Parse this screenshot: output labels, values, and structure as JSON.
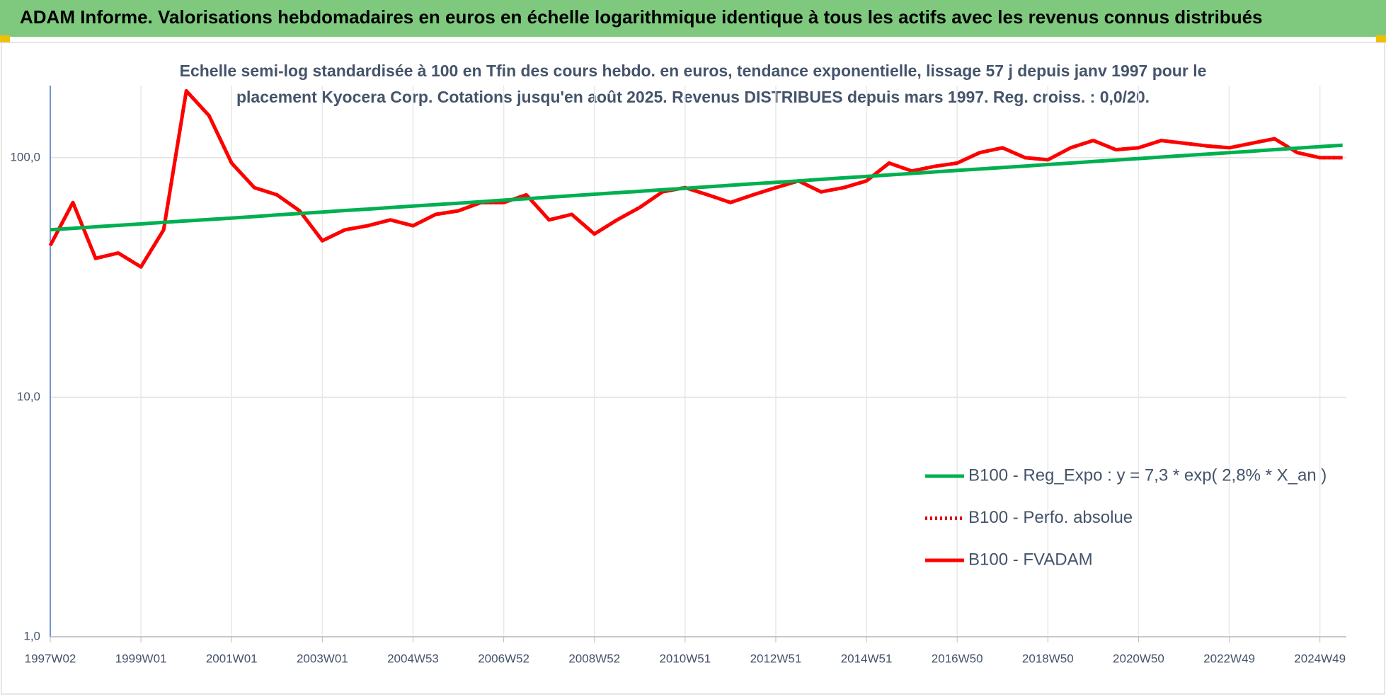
{
  "header": {
    "title": "ADAM Informe. Valorisations hebdomadaires en euros en échelle logarithmique identique à tous les actifs avec les revenus connus distribués"
  },
  "chart_data": {
    "type": "line",
    "subtitle": [
      "Echelle semi-log standardisée à 100 en Tfin des cours hebdo. en euros, tendance exponentielle, lissage 57 j depuis janv 1997 pour le",
      "placement Kyocera Corp. Cotations jusqu'en août 2025. Revenus DISTRIBUES depuis mars 1997. Reg. croiss. : 0,0/20."
    ],
    "categories": [
      "1997W02",
      null,
      null,
      null,
      "1999W01",
      null,
      null,
      null,
      "2001W01",
      null,
      null,
      null,
      "2003W01",
      null,
      null,
      null,
      "2004W53",
      null,
      null,
      null,
      "2006W52",
      null,
      null,
      null,
      "2008W52",
      null,
      null,
      null,
      "2010W51",
      null,
      null,
      null,
      "2012W51",
      null,
      null,
      null,
      "2014W51",
      null,
      null,
      null,
      "2016W50",
      null,
      null,
      null,
      "2018W50",
      null,
      null,
      null,
      "2020W50",
      null,
      null,
      null,
      "2022W49",
      null,
      null,
      null,
      "2024W49",
      null
    ],
    "series": [
      {
        "name": "B100 - Reg_Expo : y = 7,3 * exp( 2,8% *  X_an )",
        "color": "#00b050",
        "style": "solid",
        "values": [
          50.0,
          50.7,
          51.5,
          52.2,
          52.9,
          53.7,
          54.5,
          55.2,
          56.0,
          56.8,
          57.7,
          58.5,
          59.3,
          60.2,
          61.0,
          61.9,
          62.8,
          63.7,
          64.6,
          65.5,
          66.5,
          67.4,
          68.4,
          69.4,
          70.4,
          71.4,
          72.4,
          73.5,
          74.5,
          75.6,
          76.7,
          77.8,
          78.9,
          80.0,
          81.2,
          82.4,
          83.5,
          84.7,
          86.0,
          87.2,
          88.5,
          89.7,
          91.0,
          92.3,
          93.7,
          95.0,
          96.4,
          97.8,
          99.2,
          100.6,
          102.1,
          103.5,
          105.0,
          106.5,
          108.1,
          109.6,
          111.2,
          112.8
        ]
      },
      {
        "name": "B100 - Perfo. absolue",
        "color": "#e00000",
        "style": "dotted",
        "values": [
          43,
          65,
          38,
          40,
          35,
          50,
          190,
          150,
          95,
          75,
          70,
          60,
          45,
          50,
          52,
          55,
          52,
          58,
          60,
          65,
          65,
          70,
          55,
          58,
          48,
          55,
          62,
          72,
          75,
          70,
          65,
          70,
          75,
          80,
          72,
          75,
          80,
          95,
          88,
          92,
          95,
          105,
          110,
          100,
          98,
          110,
          118,
          108,
          110,
          118,
          115,
          112,
          110,
          115,
          120,
          105,
          100,
          100
        ]
      },
      {
        "name": "B100 - FVADAM",
        "color": "#ff0000",
        "style": "solid",
        "values": [
          43,
          65,
          38,
          40,
          35,
          50,
          190,
          150,
          95,
          75,
          70,
          60,
          45,
          50,
          52,
          55,
          52,
          58,
          60,
          65,
          65,
          70,
          55,
          58,
          48,
          55,
          62,
          72,
          75,
          70,
          65,
          70,
          75,
          80,
          72,
          75,
          80,
          95,
          88,
          92,
          95,
          105,
          110,
          100,
          98,
          110,
          118,
          108,
          110,
          118,
          115,
          112,
          110,
          115,
          120,
          105,
          100,
          100
        ]
      }
    ],
    "ylim": [
      1,
      200
    ],
    "log_y": true,
    "yticks": [
      {
        "value": 1,
        "label": "1,0"
      },
      {
        "value": 10,
        "label": "10,0"
      },
      {
        "value": 100,
        "label": "100,0"
      }
    ],
    "grid": true,
    "legend": "lower right"
  }
}
